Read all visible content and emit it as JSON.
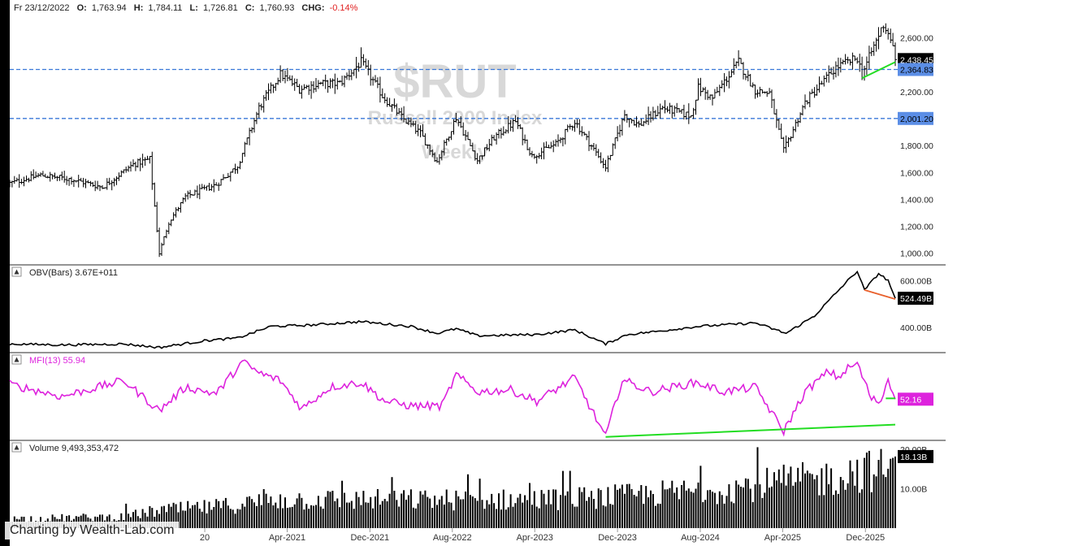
{
  "header": {
    "date": "Fr 23/12/2022",
    "o_label": "O:",
    "o": "1,763.94",
    "h_label": "H:",
    "h": "1,784.11",
    "l_label": "L:",
    "l": "1,726.81",
    "c_label": "C:",
    "c": "1,760.93",
    "chg_label": "CHG:",
    "chg": "-0.14%"
  },
  "watermark": {
    "symbol": "$RUT",
    "name": "Russell 2000 Index",
    "interval": "Weekly"
  },
  "credit": "Charting by Wealth-Lab.com",
  "colors": {
    "bars": "#000000",
    "support": "#3a78d8",
    "support_tag": "#5b8ee6",
    "trend_green": "#22dd22",
    "trend_orange": "#e8602c",
    "mfi": "#dd22dd"
  },
  "chart_data": [
    {
      "pane": "price",
      "type": "ohlc",
      "y_ticks": [
        "2,600.00",
        "2,400.00",
        "2,200.00",
        "2,000.00",
        "1,800.00",
        "1,600.00",
        "1,400.00",
        "1,200.00",
        "1,000.00"
      ],
      "ylim": [
        950,
        2760
      ],
      "x_ticks": [
        "20",
        "Apr-2021",
        "Dec-2021",
        "Aug-2022",
        "Apr-2023",
        "Dec-2023",
        "Aug-2024",
        "Apr-2025",
        "Dec-2025"
      ],
      "x_tick_dates": [
        "2020-08-01",
        "2021-04-01",
        "2021-12-01",
        "2022-08-01",
        "2023-04-01",
        "2023-12-01",
        "2024-08-01",
        "2025-04-01",
        "2025-12-01"
      ],
      "support_levels": [
        {
          "value": 2364.83,
          "label": "2,364.83"
        },
        {
          "value": 2001.2,
          "label": "2,001.20"
        }
      ],
      "last_price": {
        "value": 2438.45,
        "label": "2,438.45"
      },
      "trendline": {
        "from": {
          "date": "2025-11-21",
          "value": 2300
        },
        "to": {
          "date": "2026-02-27",
          "value": 2420
        }
      },
      "close_anchors": [
        {
          "date": "2019-01-04",
          "value": 1520
        },
        {
          "date": "2019-04-05",
          "value": 1580
        },
        {
          "date": "2019-07-05",
          "value": 1550
        },
        {
          "date": "2019-10-04",
          "value": 1490
        },
        {
          "date": "2020-01-03",
          "value": 1660
        },
        {
          "date": "2020-02-21",
          "value": 1700
        },
        {
          "date": "2020-03-20",
          "value": 1000
        },
        {
          "date": "2020-04-17",
          "value": 1230
        },
        {
          "date": "2020-06-05",
          "value": 1420
        },
        {
          "date": "2020-09-04",
          "value": 1510
        },
        {
          "date": "2020-11-06",
          "value": 1650
        },
        {
          "date": "2021-01-08",
          "value": 2080
        },
        {
          "date": "2021-03-12",
          "value": 2330
        },
        {
          "date": "2021-05-07",
          "value": 2220
        },
        {
          "date": "2021-07-09",
          "value": 2260
        },
        {
          "date": "2021-09-03",
          "value": 2260
        },
        {
          "date": "2021-11-05",
          "value": 2420
        },
        {
          "date": "2022-01-07",
          "value": 2170
        },
        {
          "date": "2022-03-04",
          "value": 2010
        },
        {
          "date": "2022-04-29",
          "value": 1890
        },
        {
          "date": "2022-06-17",
          "value": 1680
        },
        {
          "date": "2022-08-12",
          "value": 2010
        },
        {
          "date": "2022-10-14",
          "value": 1690
        },
        {
          "date": "2022-12-02",
          "value": 1860
        },
        {
          "date": "2023-02-03",
          "value": 1980
        },
        {
          "date": "2023-03-24",
          "value": 1720
        },
        {
          "date": "2023-06-02",
          "value": 1810
        },
        {
          "date": "2023-07-28",
          "value": 1980
        },
        {
          "date": "2023-10-27",
          "value": 1640
        },
        {
          "date": "2023-12-22",
          "value": 2030
        },
        {
          "date": "2024-02-02",
          "value": 1950
        },
        {
          "date": "2024-04-12",
          "value": 2080
        },
        {
          "date": "2024-07-05",
          "value": 2020
        },
        {
          "date": "2024-07-26",
          "value": 2230
        },
        {
          "date": "2024-09-06",
          "value": 2150
        },
        {
          "date": "2024-11-22",
          "value": 2420
        },
        {
          "date": "2025-01-10",
          "value": 2210
        },
        {
          "date": "2025-02-21",
          "value": 2190
        },
        {
          "date": "2025-04-04",
          "value": 1760
        },
        {
          "date": "2025-06-06",
          "value": 2120
        },
        {
          "date": "2025-09-05",
          "value": 2380
        },
        {
          "date": "2025-11-07",
          "value": 2450
        },
        {
          "date": "2025-11-21",
          "value": 2330
        },
        {
          "date": "2026-01-09",
          "value": 2620
        },
        {
          "date": "2026-01-23",
          "value": 2700
        },
        {
          "date": "2026-02-13",
          "value": 2600
        },
        {
          "date": "2026-02-27",
          "value": 2438.45
        }
      ]
    },
    {
      "pane": "obv",
      "type": "line",
      "title": "OBV(Bars) 3.67E+011",
      "y_ticks": [
        "600.00B",
        "400.00B"
      ],
      "ylim": [
        300,
        660
      ],
      "last": {
        "value": 524.49,
        "label": "524.49B"
      },
      "trendline": {
        "from": {
          "date": "2025-11-28",
          "value": 560
        },
        "to": {
          "date": "2026-02-27",
          "value": 521
        }
      },
      "anchors": [
        {
          "date": "2019-01-04",
          "value": 330
        },
        {
          "date": "2019-06-07",
          "value": 326
        },
        {
          "date": "2019-12-06",
          "value": 330
        },
        {
          "date": "2020-03-20",
          "value": 315
        },
        {
          "date": "2020-08-07",
          "value": 345
        },
        {
          "date": "2020-11-06",
          "value": 355
        },
        {
          "date": "2021-02-12",
          "value": 405
        },
        {
          "date": "2021-06-04",
          "value": 410
        },
        {
          "date": "2021-11-05",
          "value": 425
        },
        {
          "date": "2022-04-01",
          "value": 405
        },
        {
          "date": "2022-06-17",
          "value": 375
        },
        {
          "date": "2022-08-12",
          "value": 395
        },
        {
          "date": "2022-10-14",
          "value": 365
        },
        {
          "date": "2023-04-07",
          "value": 370
        },
        {
          "date": "2023-07-28",
          "value": 390
        },
        {
          "date": "2023-10-27",
          "value": 330
        },
        {
          "date": "2023-12-29",
          "value": 370
        },
        {
          "date": "2024-04-05",
          "value": 385
        },
        {
          "date": "2024-07-26",
          "value": 405
        },
        {
          "date": "2024-11-22",
          "value": 415
        },
        {
          "date": "2025-01-10",
          "value": 420
        },
        {
          "date": "2025-04-11",
          "value": 375
        },
        {
          "date": "2025-07-04",
          "value": 450
        },
        {
          "date": "2025-10-10",
          "value": 600
        },
        {
          "date": "2025-11-07",
          "value": 640
        },
        {
          "date": "2025-11-28",
          "value": 560
        },
        {
          "date": "2026-01-09",
          "value": 630
        },
        {
          "date": "2026-02-06",
          "value": 600
        },
        {
          "date": "2026-02-27",
          "value": 524.49
        }
      ]
    },
    {
      "pane": "mfi",
      "type": "line",
      "title": "MFI(13) 55.94",
      "ylim": [
        10,
        100
      ],
      "last": {
        "value": 52.16,
        "label": "52.16"
      },
      "trendlines": [
        {
          "from": {
            "date": "2023-10-27",
            "value": 12
          },
          "to": {
            "date": "2026-02-27",
            "value": 25
          }
        },
        {
          "from": {
            "date": "2026-01-30",
            "value": 53
          },
          "to": {
            "date": "2026-02-27",
            "value": 53
          }
        }
      ],
      "anchors": [
        {
          "date": "2019-01-04",
          "value": 68
        },
        {
          "date": "2019-06-07",
          "value": 55
        },
        {
          "date": "2019-12-06",
          "value": 72
        },
        {
          "date": "2020-03-20",
          "value": 40
        },
        {
          "date": "2020-06-05",
          "value": 65
        },
        {
          "date": "2020-09-04",
          "value": 58
        },
        {
          "date": "2020-11-20",
          "value": 92
        },
        {
          "date": "2021-01-08",
          "value": 80
        },
        {
          "date": "2021-03-12",
          "value": 72
        },
        {
          "date": "2021-05-14",
          "value": 42
        },
        {
          "date": "2021-08-06",
          "value": 65
        },
        {
          "date": "2021-11-05",
          "value": 70
        },
        {
          "date": "2022-01-14",
          "value": 50
        },
        {
          "date": "2022-04-01",
          "value": 45
        },
        {
          "date": "2022-07-01",
          "value": 45
        },
        {
          "date": "2022-08-12",
          "value": 78
        },
        {
          "date": "2022-10-14",
          "value": 60
        },
        {
          "date": "2023-01-20",
          "value": 62
        },
        {
          "date": "2023-04-07",
          "value": 50
        },
        {
          "date": "2023-07-28",
          "value": 75
        },
        {
          "date": "2023-10-27",
          "value": 12
        },
        {
          "date": "2023-12-15",
          "value": 73
        },
        {
          "date": "2024-03-08",
          "value": 60
        },
        {
          "date": "2024-07-19",
          "value": 70
        },
        {
          "date": "2024-10-11",
          "value": 60
        },
        {
          "date": "2025-01-10",
          "value": 65
        },
        {
          "date": "2025-04-04",
          "value": 18
        },
        {
          "date": "2025-06-06",
          "value": 60
        },
        {
          "date": "2025-08-15",
          "value": 82
        },
        {
          "date": "2025-09-12",
          "value": 75
        },
        {
          "date": "2025-10-10",
          "value": 85
        },
        {
          "date": "2025-11-07",
          "value": 90
        },
        {
          "date": "2025-12-19",
          "value": 52
        },
        {
          "date": "2026-01-16",
          "value": 50
        },
        {
          "date": "2026-02-06",
          "value": 75
        },
        {
          "date": "2026-02-27",
          "value": 52.16
        }
      ]
    },
    {
      "pane": "volume",
      "type": "bar",
      "title": "Volume 9,493,353,472",
      "y_ticks": [
        "10.00B"
      ],
      "ylim": [
        0,
        21
      ],
      "last": {
        "value": 18.13,
        "label": "18.13B"
      },
      "partial_tick_label": "20.00B",
      "anchors": [
        {
          "date": "2019-01-04",
          "value": 2.6
        },
        {
          "date": "2019-12-06",
          "value": 3.2
        },
        {
          "date": "2020-03-20",
          "value": 5.0
        },
        {
          "date": "2020-09-04",
          "value": 6.0
        },
        {
          "date": "2021-03-12",
          "value": 8.0
        },
        {
          "date": "2022-01-07",
          "value": 8.0
        },
        {
          "date": "2022-07-01",
          "value": 8.0
        },
        {
          "date": "2023-04-07",
          "value": 8.0
        },
        {
          "date": "2023-12-15",
          "value": 9.0
        },
        {
          "date": "2024-07-26",
          "value": 10.5
        },
        {
          "date": "2025-01-10",
          "value": 12.0
        },
        {
          "date": "2025-04-11",
          "value": 13.0
        },
        {
          "date": "2025-08-15",
          "value": 14.0
        },
        {
          "date": "2025-11-07",
          "value": 16.0
        },
        {
          "date": "2026-02-27",
          "value": 16.5
        }
      ]
    }
  ]
}
